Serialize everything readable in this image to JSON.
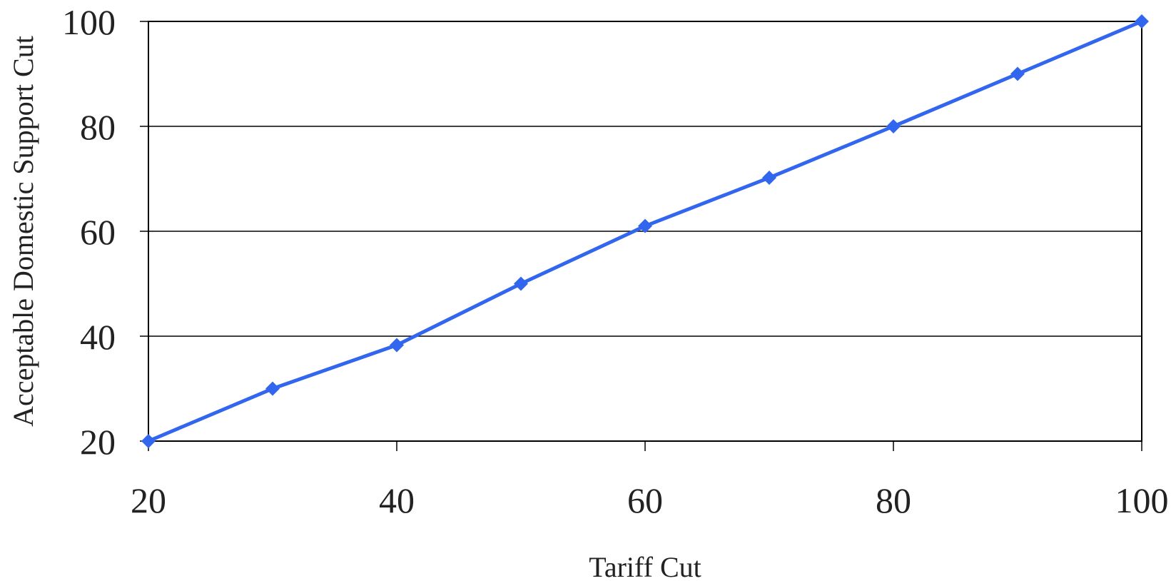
{
  "chart_data": {
    "type": "line",
    "title": "",
    "xlabel": "Tariff Cut",
    "ylabel": "Acceptable Domestic Support Cut",
    "xlim": [
      20,
      100
    ],
    "ylim": [
      20,
      100
    ],
    "x_ticks": [
      20,
      40,
      60,
      80,
      100
    ],
    "y_ticks": [
      20,
      40,
      60,
      80,
      100
    ],
    "grid": {
      "horizontal": true,
      "vertical": false
    },
    "legend": "none",
    "series": [
      {
        "color": "#3366ee",
        "marker": "diamond",
        "x": [
          20,
          30,
          40,
          50,
          60,
          70,
          80,
          90,
          100
        ],
        "y": [
          20,
          30,
          38.3,
          50,
          61,
          70.2,
          80,
          90,
          100
        ]
      }
    ]
  }
}
